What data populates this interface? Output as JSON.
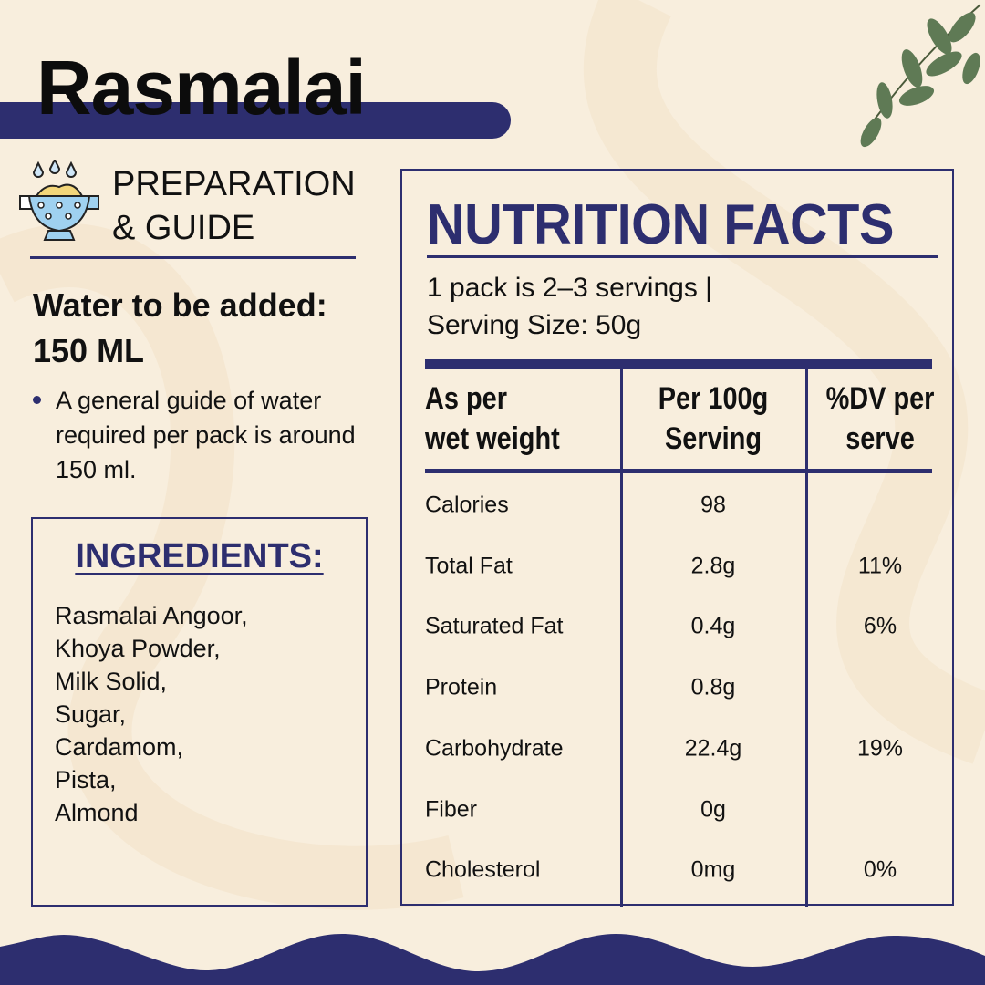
{
  "product": {
    "name": "Rasmalai"
  },
  "preparation": {
    "heading_line1": "PREPARATION",
    "heading_line2": "& GUIDE",
    "water_label": "Water to be added:",
    "water_amount": "150 ML",
    "note": "A general guide of water required per pack is around 150 ml."
  },
  "ingredients": {
    "heading": "INGREDIENTS:",
    "items": [
      "Rasmalai Angoor,",
      "Khoya Powder,",
      "Milk Solid,",
      "Sugar,",
      "Cardamom,",
      "Pista,",
      "Almond"
    ]
  },
  "nutrition": {
    "title": "NUTRITION FACTS",
    "serving_line1": "1 pack is 2–3 servings |",
    "serving_line2": "Serving Size: 50g",
    "headers": {
      "col1_line1": "As per",
      "col1_line2": "wet weight",
      "col2_line1": "Per 100g",
      "col2_line2": "Serving",
      "col3_line1": "%DV per",
      "col3_line2": "serve"
    },
    "rows": [
      {
        "name": "Calories",
        "per100": "98",
        "dv": ""
      },
      {
        "name": "Total Fat",
        "per100": "2.8g",
        "dv": "11%"
      },
      {
        "name": "Saturated Fat",
        "per100": "0.4g",
        "dv": "6%"
      },
      {
        "name": "Protein",
        "per100": "0.8g",
        "dv": ""
      },
      {
        "name": "Carbohydrate",
        "per100": "22.4g",
        "dv": "19%"
      },
      {
        "name": "Fiber",
        "per100": "0g",
        "dv": ""
      },
      {
        "name": "Cholesterol",
        "per100": "0mg",
        "dv": "0%"
      }
    ]
  },
  "colors": {
    "navy": "#2d2e6f",
    "background": "#f8eedd"
  }
}
